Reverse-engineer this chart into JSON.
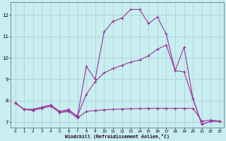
{
  "xlabel": "Windchill (Refroidissement éolien,°C)",
  "background_color": "#c8eef0",
  "grid_color": "#a8ccd4",
  "line_color": "#993399",
  "xlim": [
    -0.5,
    23.5
  ],
  "ylim": [
    6.75,
    12.6
  ],
  "xticks": [
    0,
    1,
    2,
    3,
    4,
    5,
    6,
    7,
    8,
    9,
    10,
    11,
    12,
    13,
    14,
    15,
    16,
    17,
    18,
    19,
    20,
    21,
    22,
    23
  ],
  "yticks": [
    7,
    8,
    9,
    10,
    11,
    12
  ],
  "line1_x": [
    0,
    1,
    2,
    3,
    4,
    5,
    6,
    7,
    8,
    9,
    10,
    11,
    12,
    13,
    14,
    15,
    16,
    17,
    18,
    19,
    20,
    21,
    22,
    23
  ],
  "line1_y": [
    7.9,
    7.6,
    7.6,
    7.7,
    7.8,
    7.5,
    7.6,
    7.25,
    9.6,
    9.0,
    11.2,
    11.7,
    11.85,
    12.25,
    12.25,
    11.6,
    11.9,
    11.1,
    9.4,
    10.5,
    8.1,
    6.9,
    7.05,
    7.05
  ],
  "line2_x": [
    0,
    1,
    2,
    3,
    4,
    5,
    6,
    7,
    8,
    9,
    10,
    11,
    12,
    13,
    14,
    15,
    16,
    17,
    18,
    19,
    20,
    21,
    22,
    23
  ],
  "line2_y": [
    7.9,
    7.6,
    7.6,
    7.7,
    7.8,
    7.5,
    7.55,
    7.3,
    8.3,
    8.9,
    9.3,
    9.5,
    9.65,
    9.8,
    9.9,
    10.1,
    10.4,
    10.6,
    9.4,
    9.35,
    8.1,
    6.9,
    7.05,
    7.05
  ],
  "line3_x": [
    0,
    1,
    2,
    3,
    4,
    5,
    6,
    7,
    8,
    9,
    10,
    11,
    12,
    13,
    14,
    15,
    16,
    17,
    18,
    19,
    20,
    21,
    22,
    23
  ],
  "line3_y": [
    7.9,
    7.6,
    7.55,
    7.65,
    7.75,
    7.45,
    7.5,
    7.2,
    7.5,
    7.55,
    7.58,
    7.6,
    7.62,
    7.63,
    7.64,
    7.65,
    7.65,
    7.65,
    7.65,
    7.65,
    7.65,
    7.05,
    7.1,
    7.05
  ]
}
